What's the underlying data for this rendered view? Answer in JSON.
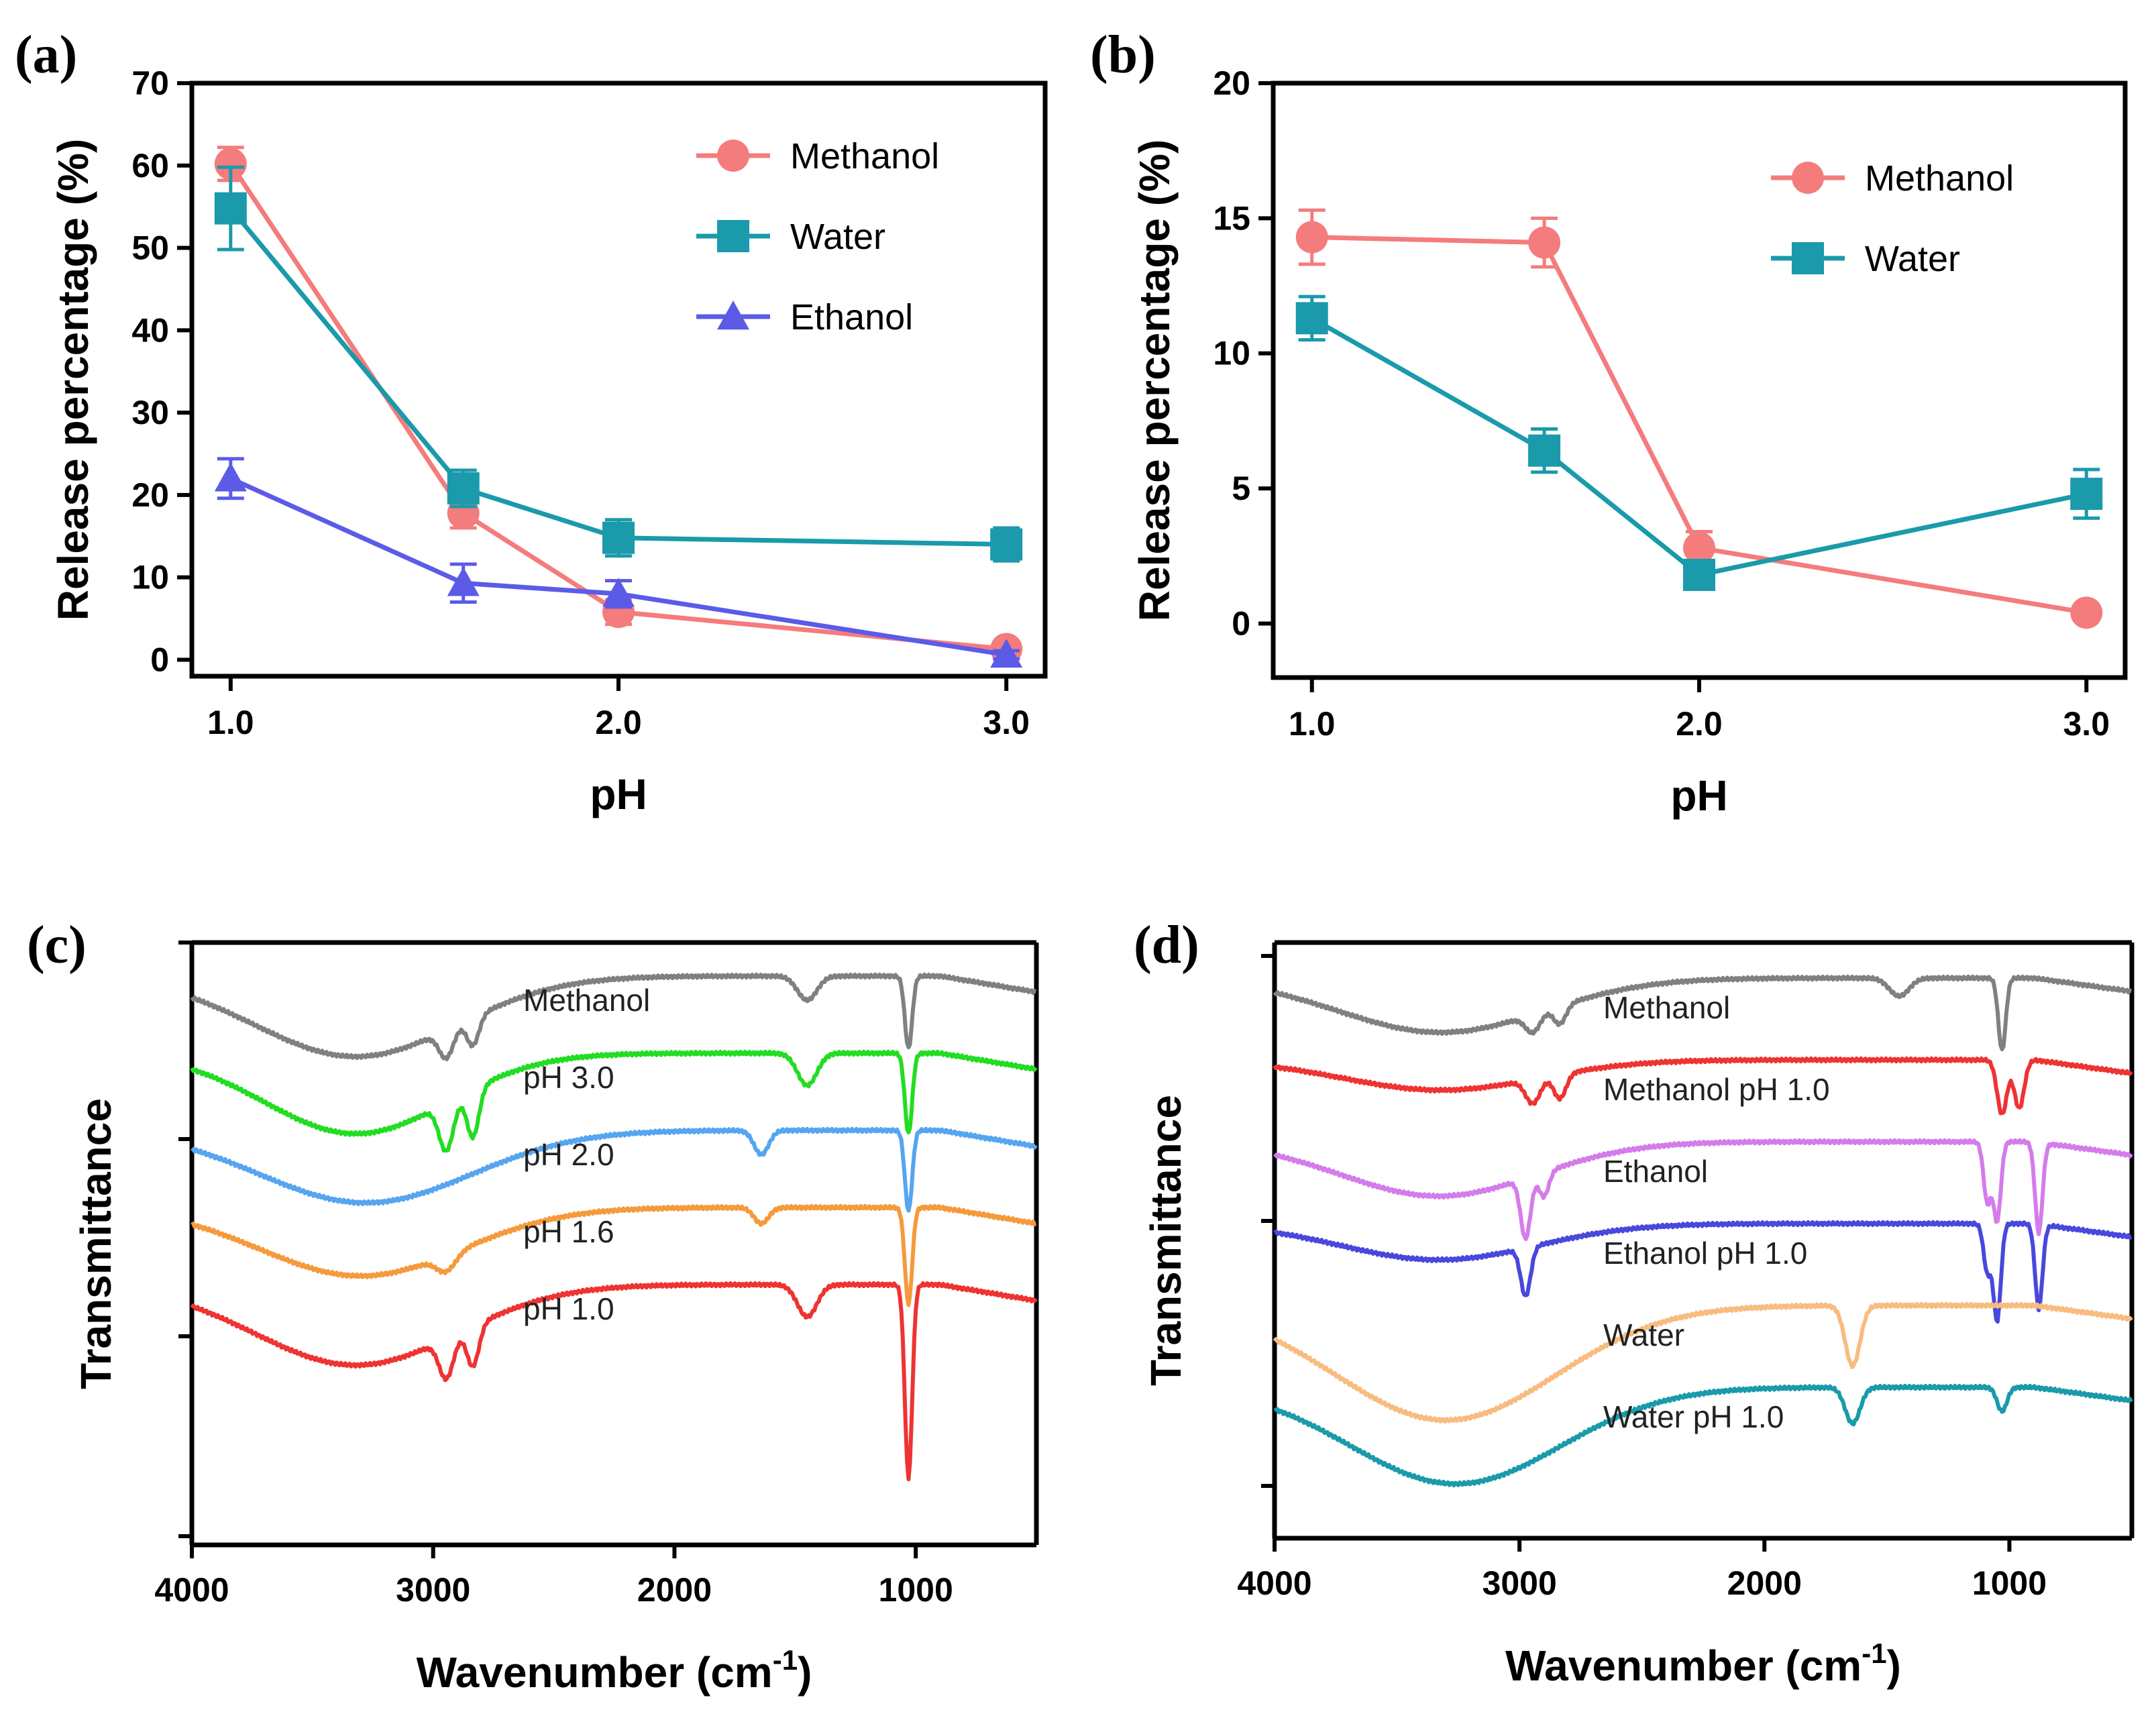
{
  "chart_data": [
    {
      "panel": "(a)",
      "type": "line",
      "xlabel": "pH",
      "ylabel": "Release percentage (%)",
      "xlim": [
        0.9,
        3.1
      ],
      "ylim": [
        -2,
        70
      ],
      "xticks": [
        1.0,
        2.0,
        3.0
      ],
      "xtick_labels": [
        "1.0",
        "2.0",
        "3.0"
      ],
      "yticks": [
        0,
        10,
        20,
        30,
        40,
        50,
        60,
        70
      ],
      "ytick_labels": [
        "0",
        "10",
        "20",
        "30",
        "40",
        "50",
        "60",
        "70"
      ],
      "x": [
        1.0,
        1.6,
        2.0,
        3.0
      ],
      "legend_position": "top-right",
      "series": [
        {
          "name": "Methanol",
          "color": "#F47C7C",
          "marker": "circle",
          "values": [
            60.2,
            17.8,
            5.8,
            1.3
          ],
          "errors": [
            2.0,
            1.8,
            1.5,
            0.8
          ]
        },
        {
          "name": "Water",
          "color": "#1A9AAA",
          "marker": "square",
          "values": [
            54.8,
            20.8,
            14.8,
            14.0
          ],
          "errors": [
            5.0,
            2.2,
            2.2,
            2.0
          ]
        },
        {
          "name": "Ethanol",
          "color": "#5B5BE8",
          "marker": "triangle",
          "values": [
            22.0,
            9.3,
            8.0,
            0.6
          ],
          "errors": [
            2.4,
            2.3,
            1.6,
            0.5
          ]
        }
      ]
    },
    {
      "panel": "(b)",
      "type": "line",
      "xlabel": "pH",
      "ylabel": "Release percentage (%)",
      "xlim": [
        0.9,
        3.1
      ],
      "ylim": [
        -2,
        20
      ],
      "xticks": [
        1.0,
        2.0,
        3.0
      ],
      "xtick_labels": [
        "1.0",
        "2.0",
        "3.0"
      ],
      "yticks": [
        0,
        5,
        10,
        15,
        20
      ],
      "ytick_labels": [
        "0",
        "5",
        "10",
        "15",
        "20"
      ],
      "x": [
        1.0,
        1.6,
        2.0,
        3.0
      ],
      "legend_position": "top-right",
      "series": [
        {
          "name": "Methanol",
          "color": "#F47C7C",
          "marker": "circle",
          "values": [
            14.3,
            14.1,
            2.8,
            0.4
          ],
          "errors": [
            1.0,
            0.9,
            0.6,
            0.2
          ]
        },
        {
          "name": "Water",
          "color": "#1A9AAA",
          "marker": "square",
          "values": [
            11.3,
            6.4,
            1.8,
            4.8
          ],
          "errors": [
            0.8,
            0.8,
            0.3,
            0.9
          ]
        }
      ]
    },
    {
      "panel": "(c)",
      "type": "line",
      "xlabel": "Wavenumber (cm-1)",
      "ylabel": "Transmittance",
      "xlim": [
        4000,
        500
      ],
      "xticks": [
        4000,
        3000,
        2000,
        1000
      ],
      "xtick_labels": [
        "4000",
        "3000",
        "2000",
        "1000"
      ],
      "spectra": [
        {
          "name": "Methanol",
          "color": "#808080",
          "baseline": 0,
          "dips": [
            [
              3320,
              420,
              1.0
            ],
            [
              2945,
              30,
              0.35
            ],
            [
              2835,
              25,
              0.35
            ],
            [
              1450,
              40,
              0.3
            ],
            [
              1030,
              15,
              0.9
            ]
          ]
        },
        {
          "name": "pH 3.0",
          "color": "#22DD22",
          "baseline": 1,
          "dips": [
            [
              3320,
              380,
              1.0
            ],
            [
              2945,
              30,
              0.6
            ],
            [
              2835,
              25,
              0.6
            ],
            [
              1450,
              40,
              0.4
            ],
            [
              1030,
              15,
              1.0
            ]
          ]
        },
        {
          "name": "pH 2.0",
          "color": "#55A5F0",
          "baseline": 2,
          "dips": [
            [
              3280,
              440,
              0.9
            ],
            [
              1640,
              30,
              0.3
            ],
            [
              1030,
              15,
              1.0
            ]
          ]
        },
        {
          "name": "pH 1.6",
          "color": "#F59A3C",
          "baseline": 3,
          "dips": [
            [
              3300,
              420,
              0.85
            ],
            [
              2945,
              40,
              0.2
            ],
            [
              1640,
              30,
              0.2
            ],
            [
              1030,
              15,
              1.2
            ]
          ]
        },
        {
          "name": "pH 1.0",
          "color": "#EE3333",
          "baseline": 4,
          "dips": [
            [
              3320,
              420,
              1.0
            ],
            [
              2945,
              30,
              0.5
            ],
            [
              2835,
              25,
              0.5
            ],
            [
              1450,
              40,
              0.4
            ],
            [
              1030,
              15,
              2.4
            ]
          ]
        }
      ]
    },
    {
      "panel": "(d)",
      "type": "line",
      "xlabel": "Wavenumber (cm-1)",
      "ylabel": "Transmittance",
      "xlim": [
        4000,
        500
      ],
      "xticks": [
        4000,
        3000,
        2000,
        1000
      ],
      "xtick_labels": [
        "4000",
        "3000",
        "2000",
        "1000"
      ],
      "spectra": [
        {
          "name": "Methanol",
          "color": "#808080",
          "baseline": 0,
          "dips": [
            [
              3320,
              420,
              0.9
            ],
            [
              2945,
              30,
              0.3
            ],
            [
              2835,
              25,
              0.3
            ],
            [
              1450,
              40,
              0.3
            ],
            [
              1030,
              15,
              1.2
            ]
          ]
        },
        {
          "name": "Methanol pH 1.0",
          "color": "#EE3333",
          "baseline": 1,
          "dips": [
            [
              3320,
              400,
              0.5
            ],
            [
              2945,
              30,
              0.4
            ],
            [
              2835,
              25,
              0.4
            ],
            [
              1030,
              20,
              0.9
            ],
            [
              960,
              20,
              0.8
            ]
          ]
        },
        {
          "name": "Ethanol",
          "color": "#D47CEB",
          "baseline": 2,
          "dips": [
            [
              3330,
              400,
              0.9
            ],
            [
              2975,
              20,
              1.0
            ],
            [
              2900,
              20,
              0.4
            ],
            [
              1090,
              15,
              1.0
            ],
            [
              1050,
              15,
              1.3
            ],
            [
              880,
              15,
              1.5
            ]
          ]
        },
        {
          "name": "Ethanol pH 1.0",
          "color": "#4848DD",
          "baseline": 3,
          "dips": [
            [
              3330,
              400,
              0.6
            ],
            [
              2975,
              20,
              0.8
            ],
            [
              1090,
              15,
              0.8
            ],
            [
              1050,
              15,
              1.6
            ],
            [
              880,
              15,
              1.4
            ]
          ]
        },
        {
          "name": "Water",
          "color": "#F8BC80",
          "baseline": 4,
          "dips": [
            [
              3300,
              450,
              1.9
            ],
            [
              1640,
              30,
              1.0
            ]
          ]
        },
        {
          "name": "Water pH 1.0",
          "color": "#1A9AAA",
          "baseline": 5,
          "dips": [
            [
              3260,
              430,
              1.6
            ],
            [
              1640,
              30,
              0.6
            ],
            [
              1030,
              20,
              0.4
            ]
          ]
        }
      ]
    }
  ]
}
